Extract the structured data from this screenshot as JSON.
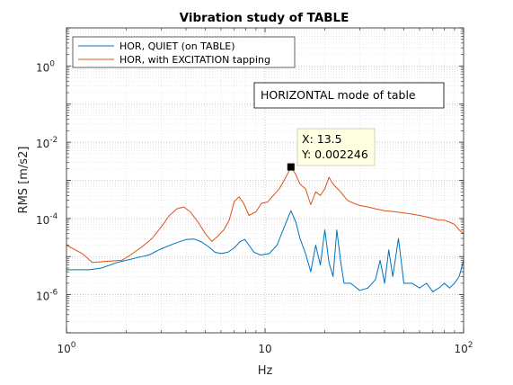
{
  "chart_data": {
    "type": "line",
    "title": "Vibration study of TABLE",
    "xlabel": "Hz",
    "ylabel": "RMS [m/s2]",
    "xscale": "log",
    "yscale": "log",
    "xlim": [
      1,
      100
    ],
    "ylim": [
      1e-07,
      10.0
    ],
    "grid": "on (major and minor)",
    "legend_location": "top-left",
    "x_ticks": [
      {
        "base": "10",
        "exp": "0",
        "value": 1
      },
      {
        "base": "10",
        "exp": "",
        "value": 10
      },
      {
        "base": "10",
        "exp": "2",
        "value": 100
      }
    ],
    "y_ticks": [
      {
        "base": "10",
        "exp": "-6",
        "value": 1e-06
      },
      {
        "base": "10",
        "exp": "-4",
        "value": 0.0001
      },
      {
        "base": "10",
        "exp": "-2",
        "value": 0.01
      },
      {
        "base": "10",
        "exp": "0",
        "value": 1
      }
    ],
    "series": [
      {
        "name": "HOR, QUIET (on TABLE)",
        "color": "#0072BD",
        "points": [
          [
            1.0,
            4.5e-06
          ],
          [
            1.3,
            4.5e-06
          ],
          [
            1.5,
            5e-06
          ],
          [
            1.8,
            7e-06
          ],
          [
            2.0,
            8e-06
          ],
          [
            2.3,
            9.5e-06
          ],
          [
            2.6,
            1.1e-05
          ],
          [
            3.0,
            1.6e-05
          ],
          [
            3.5,
            2.2e-05
          ],
          [
            4.0,
            2.8e-05
          ],
          [
            4.4,
            2.9e-05
          ],
          [
            4.8,
            2.4e-05
          ],
          [
            5.2,
            1.8e-05
          ],
          [
            5.6,
            1.3e-05
          ],
          [
            6.0,
            1.2e-05
          ],
          [
            6.5,
            1.3e-05
          ],
          [
            7.0,
            1.7e-05
          ],
          [
            7.5,
            2.5e-05
          ],
          [
            7.9,
            2.8e-05
          ],
          [
            8.3,
            2e-05
          ],
          [
            8.8,
            1.3e-05
          ],
          [
            9.5,
            1.1e-05
          ],
          [
            10.5,
            1.2e-05
          ],
          [
            11.5,
            2e-05
          ],
          [
            12.5,
            6e-05
          ],
          [
            13.5,
            0.00016
          ],
          [
            14.3,
            8e-05
          ],
          [
            15.0,
            3e-05
          ],
          [
            16.0,
            1.2e-05
          ],
          [
            17.0,
            4e-06
          ],
          [
            18.0,
            2e-05
          ],
          [
            19.0,
            6e-06
          ],
          [
            20.0,
            5e-05
          ],
          [
            21.0,
            7e-06
          ],
          [
            22.0,
            3e-06
          ],
          [
            23.0,
            5e-05
          ],
          [
            24.0,
            8e-06
          ],
          [
            25.0,
            2e-06
          ],
          [
            27.0,
            2e-06
          ],
          [
            30.0,
            1.3e-06
          ],
          [
            33.0,
            1.5e-06
          ],
          [
            36.0,
            2.5e-06
          ],
          [
            38.0,
            8e-06
          ],
          [
            40.0,
            2e-06
          ],
          [
            42.0,
            1.5e-05
          ],
          [
            44.0,
            3e-06
          ],
          [
            47.0,
            3e-05
          ],
          [
            50.0,
            2e-06
          ],
          [
            55.0,
            2e-06
          ],
          [
            60.0,
            1.5e-06
          ],
          [
            65.0,
            2e-06
          ],
          [
            70.0,
            1.2e-06
          ],
          [
            75.0,
            1.5e-06
          ],
          [
            80.0,
            2e-06
          ],
          [
            85.0,
            1.5e-06
          ],
          [
            90.0,
            2e-06
          ],
          [
            95.0,
            3e-06
          ],
          [
            100.0,
            8e-06
          ]
        ]
      },
      {
        "name": "HOR, with EXCITATION tapping",
        "color": "#D95319",
        "points": [
          [
            1.0,
            2e-05
          ],
          [
            1.2,
            1.2e-05
          ],
          [
            1.35,
            7e-06
          ],
          [
            1.6,
            7.5e-06
          ],
          [
            1.9,
            8e-06
          ],
          [
            2.1,
            1.1e-05
          ],
          [
            2.4,
            1.8e-05
          ],
          [
            2.7,
            3e-05
          ],
          [
            3.0,
            6e-05
          ],
          [
            3.3,
            0.00012
          ],
          [
            3.6,
            0.00018
          ],
          [
            3.9,
            0.0002
          ],
          [
            4.2,
            0.00015
          ],
          [
            4.6,
            8e-05
          ],
          [
            5.0,
            4e-05
          ],
          [
            5.4,
            2.5e-05
          ],
          [
            5.8,
            3.5e-05
          ],
          [
            6.2,
            5e-05
          ],
          [
            6.6,
            9e-05
          ],
          [
            7.0,
            0.00028
          ],
          [
            7.4,
            0.00037
          ],
          [
            7.8,
            0.00025
          ],
          [
            8.3,
            0.00012
          ],
          [
            9.0,
            0.00015
          ],
          [
            9.6,
            0.00025
          ],
          [
            10.3,
            0.00027
          ],
          [
            11.0,
            0.0004
          ],
          [
            11.8,
            0.0006
          ],
          [
            12.6,
            0.0011
          ],
          [
            13.5,
            0.0022
          ],
          [
            14.2,
            0.0015
          ],
          [
            15.0,
            0.0008
          ],
          [
            16.0,
            0.0006
          ],
          [
            17.0,
            0.00023
          ],
          [
            18.0,
            0.0005
          ],
          [
            19.0,
            0.0004
          ],
          [
            20.0,
            0.0006
          ],
          [
            21.0,
            0.0012
          ],
          [
            22.0,
            0.0008
          ],
          [
            24.0,
            0.0005
          ],
          [
            26.0,
            0.0003
          ],
          [
            28.0,
            0.00025
          ],
          [
            30.0,
            0.00022
          ],
          [
            33.0,
            0.0002
          ],
          [
            36.0,
            0.00018
          ],
          [
            40.0,
            0.00016
          ],
          [
            45.0,
            0.00015
          ],
          [
            50.0,
            0.00014
          ],
          [
            55.0,
            0.00013
          ],
          [
            60.0,
            0.00012
          ],
          [
            65.0,
            0.00011
          ],
          [
            70.0,
            0.0001
          ],
          [
            75.0,
            9e-05
          ],
          [
            80.0,
            9e-05
          ],
          [
            85.0,
            8e-05
          ],
          [
            90.0,
            7e-05
          ],
          [
            95.0,
            5e-05
          ],
          [
            100.0,
            4e-05
          ]
        ]
      }
    ],
    "annotation_box": "HORIZONTAL mode of table",
    "datatip": {
      "x": 13.5,
      "y": 0.002246,
      "x_label": "X: 13.5",
      "y_label": "Y: 0.002246"
    }
  }
}
